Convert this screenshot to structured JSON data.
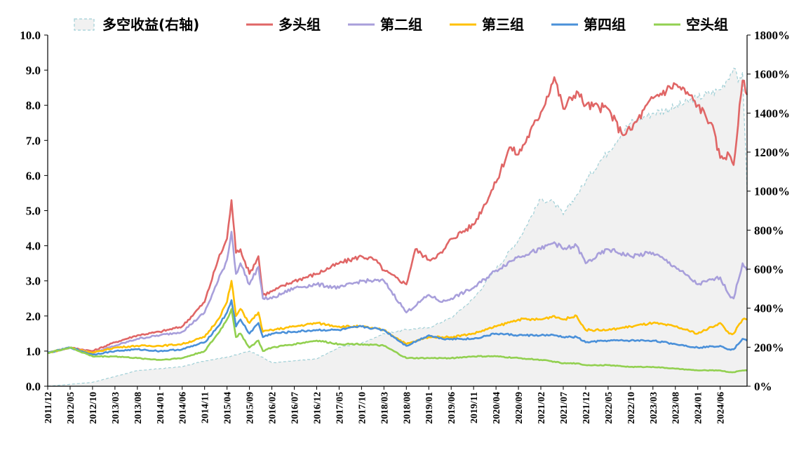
{
  "chart_data": {
    "type": "line",
    "title": "",
    "xlabel": "",
    "ylabel": "",
    "ylim": [
      0,
      10
    ],
    "y_ticks": [
      "0.0",
      "1.0",
      "2.0",
      "3.0",
      "4.0",
      "5.0",
      "6.0",
      "7.0",
      "8.0",
      "9.0",
      "10.0"
    ],
    "y2lim": [
      0,
      18
    ],
    "y2_ticks": [
      "0%",
      "200%",
      "400%",
      "600%",
      "800%",
      "1000%",
      "1200%",
      "1400%",
      "1600%",
      "1800%"
    ],
    "x_labels": [
      "2011/12",
      "2012/05",
      "2012/10",
      "2013/03",
      "2013/08",
      "2014/01",
      "2014/06",
      "2014/11",
      "2015/04",
      "2015/09",
      "2016/02",
      "2016/07",
      "2016/12",
      "2017/05",
      "2017/10",
      "2018/03",
      "2018/08",
      "2019/01",
      "2019/06",
      "2019/11",
      "2020/04",
      "2020/09",
      "2021/02",
      "2021/07",
      "2021/12",
      "2022/05",
      "2022/10",
      "2023/03",
      "2023/08",
      "2024/01",
      "2024/06"
    ],
    "x_range": [
      0,
      156
    ],
    "grid": false,
    "legend_position": "top",
    "series": [
      {
        "name": "多空收益(右轴)",
        "type": "area",
        "axis": "right",
        "color": "#9fcfd6",
        "fill": "#f1f1f1",
        "dashed": true,
        "x": [
          0,
          5,
          10,
          15,
          20,
          25,
          30,
          35,
          40,
          42,
          45,
          47,
          50,
          55,
          60,
          65,
          70,
          75,
          80,
          85,
          90,
          95,
          100,
          105,
          110,
          113,
          115,
          118,
          120,
          123,
          125,
          128,
          130,
          135,
          140,
          145,
          150,
          153,
          154,
          155,
          156
        ],
        "values": [
          0,
          0.1,
          0.2,
          0.5,
          0.8,
          0.9,
          1.0,
          1.3,
          1.5,
          1.6,
          1.8,
          1.6,
          1.2,
          1.3,
          1.4,
          2.0,
          2.2,
          2.7,
          2.9,
          3.0,
          3.5,
          4.5,
          6.0,
          7.5,
          9.6,
          9.4,
          8.8,
          9.8,
          10.5,
          11.5,
          12.0,
          13.0,
          13.5,
          14.0,
          14.3,
          14.8,
          15.2,
          16.3,
          15.6,
          16.1,
          10.0
        ]
      },
      {
        "name": "多头组",
        "axis": "left",
        "color": "#e06666",
        "x": [
          0,
          5,
          10,
          15,
          20,
          25,
          30,
          35,
          38,
          40,
          41,
          42,
          43,
          45,
          47,
          48,
          50,
          55,
          60,
          65,
          70,
          73,
          75,
          80,
          82,
          85,
          88,
          90,
          95,
          100,
          103,
          105,
          110,
          113,
          115,
          118,
          120,
          125,
          128,
          130,
          135,
          140,
          143,
          145,
          148,
          150,
          152,
          153,
          155,
          156
        ],
        "values": [
          0.95,
          1.1,
          1.0,
          1.25,
          1.45,
          1.55,
          1.7,
          2.4,
          3.6,
          4.2,
          5.3,
          3.8,
          3.9,
          3.2,
          3.7,
          2.6,
          2.7,
          3.0,
          3.2,
          3.5,
          3.7,
          3.6,
          3.3,
          2.9,
          3.9,
          3.6,
          3.8,
          4.2,
          4.6,
          5.8,
          6.8,
          6.6,
          7.8,
          8.8,
          7.9,
          8.4,
          8.0,
          7.9,
          7.2,
          7.3,
          8.2,
          8.6,
          8.3,
          8.0,
          7.5,
          6.5,
          6.6,
          6.3,
          8.7,
          8.3
        ]
      },
      {
        "name": "第二组",
        "axis": "left",
        "color": "#a89fdb",
        "x": [
          0,
          5,
          10,
          15,
          20,
          25,
          30,
          35,
          38,
          40,
          41,
          42,
          43,
          45,
          47,
          48,
          50,
          55,
          60,
          65,
          70,
          75,
          80,
          85,
          88,
          90,
          95,
          100,
          105,
          110,
          113,
          115,
          118,
          120,
          125,
          130,
          135,
          140,
          145,
          150,
          152,
          153,
          155,
          156
        ],
        "values": [
          0.95,
          1.1,
          0.95,
          1.15,
          1.35,
          1.45,
          1.55,
          2.1,
          3.0,
          3.6,
          4.4,
          3.2,
          3.5,
          2.9,
          3.4,
          2.5,
          2.5,
          2.8,
          2.9,
          2.8,
          3.0,
          3.0,
          2.1,
          2.6,
          2.4,
          2.5,
          2.8,
          3.3,
          3.7,
          3.9,
          4.1,
          3.9,
          4.0,
          3.5,
          3.9,
          3.7,
          3.8,
          3.4,
          2.9,
          3.1,
          2.6,
          2.5,
          3.5,
          3.3
        ]
      },
      {
        "name": "第三组",
        "axis": "left",
        "color": "#ffc000",
        "x": [
          0,
          5,
          10,
          15,
          20,
          25,
          30,
          35,
          38,
          40,
          41,
          42,
          43,
          45,
          47,
          48,
          50,
          55,
          60,
          65,
          70,
          75,
          80,
          85,
          88,
          90,
          95,
          100,
          105,
          110,
          113,
          115,
          118,
          120,
          125,
          130,
          135,
          140,
          145,
          150,
          152,
          153,
          155,
          156
        ],
        "values": [
          0.95,
          1.1,
          0.95,
          1.1,
          1.15,
          1.15,
          1.2,
          1.4,
          1.9,
          2.4,
          3.0,
          2.0,
          2.2,
          1.8,
          2.1,
          1.55,
          1.6,
          1.7,
          1.8,
          1.7,
          1.7,
          1.6,
          1.2,
          1.4,
          1.4,
          1.4,
          1.5,
          1.7,
          1.9,
          1.9,
          2.0,
          1.9,
          2.0,
          1.6,
          1.6,
          1.7,
          1.8,
          1.7,
          1.5,
          1.8,
          1.5,
          1.5,
          1.9,
          1.9
        ]
      },
      {
        "name": "第四组",
        "axis": "left",
        "color": "#4a90d9",
        "x": [
          0,
          5,
          10,
          15,
          20,
          25,
          30,
          35,
          38,
          40,
          41,
          42,
          43,
          45,
          47,
          48,
          50,
          55,
          60,
          65,
          70,
          75,
          80,
          85,
          88,
          90,
          95,
          100,
          105,
          110,
          113,
          115,
          118,
          120,
          125,
          130,
          135,
          140,
          145,
          150,
          152,
          153,
          155,
          156
        ],
        "values": [
          0.95,
          1.1,
          0.9,
          1.0,
          1.05,
          1.0,
          1.05,
          1.25,
          1.7,
          2.1,
          2.45,
          1.7,
          1.9,
          1.5,
          1.8,
          1.4,
          1.5,
          1.55,
          1.6,
          1.6,
          1.7,
          1.6,
          1.15,
          1.45,
          1.35,
          1.35,
          1.35,
          1.5,
          1.45,
          1.45,
          1.45,
          1.4,
          1.4,
          1.25,
          1.3,
          1.3,
          1.3,
          1.2,
          1.1,
          1.15,
          1.05,
          1.05,
          1.35,
          1.3
        ]
      },
      {
        "name": "空头组",
        "axis": "left",
        "color": "#92d050",
        "x": [
          0,
          5,
          10,
          15,
          20,
          25,
          30,
          35,
          38,
          40,
          41,
          42,
          43,
          45,
          47,
          48,
          50,
          55,
          60,
          65,
          70,
          75,
          80,
          85,
          88,
          90,
          95,
          100,
          105,
          110,
          113,
          115,
          118,
          120,
          125,
          130,
          135,
          140,
          145,
          150,
          152,
          153,
          155,
          156
        ],
        "values": [
          0.95,
          1.1,
          0.85,
          0.85,
          0.8,
          0.75,
          0.8,
          1.0,
          1.5,
          1.9,
          2.2,
          1.4,
          1.5,
          1.1,
          1.3,
          1.0,
          1.1,
          1.2,
          1.3,
          1.2,
          1.2,
          1.15,
          0.8,
          0.8,
          0.8,
          0.8,
          0.85,
          0.85,
          0.8,
          0.75,
          0.7,
          0.65,
          0.65,
          0.6,
          0.6,
          0.55,
          0.55,
          0.5,
          0.45,
          0.45,
          0.4,
          0.4,
          0.45,
          0.45
        ]
      }
    ]
  }
}
